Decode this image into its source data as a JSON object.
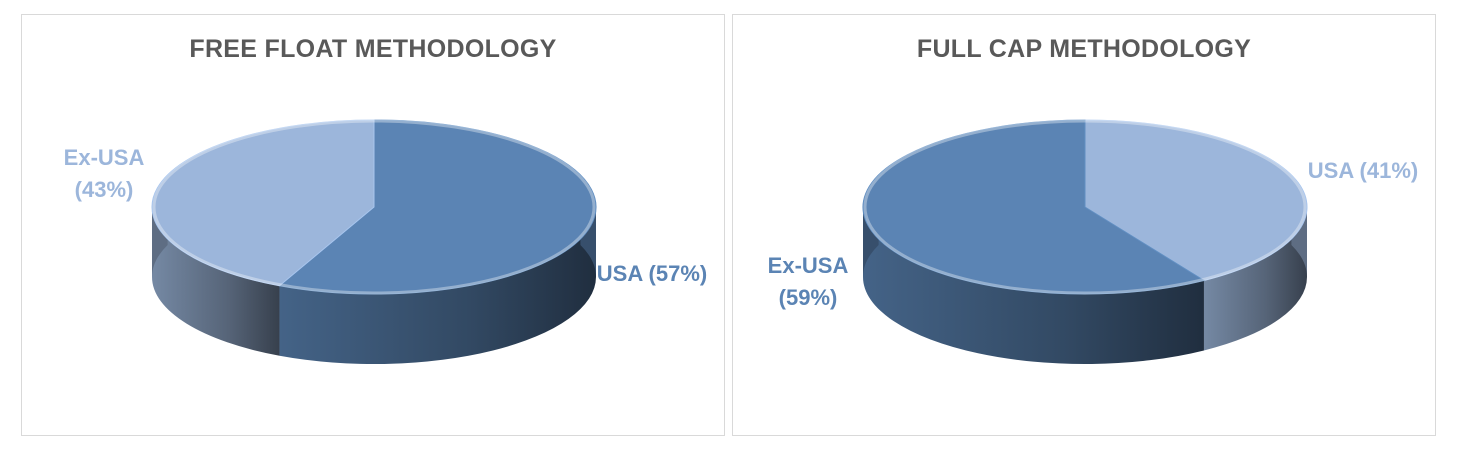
{
  "chart_data": [
    {
      "type": "pie",
      "title": "FREE FLOAT METHODOLOGY",
      "slices": [
        {
          "label": "USA (57%)",
          "name": "USA",
          "value": 57,
          "color": "#5b84b4"
        },
        {
          "label": "Ex-USA (43%)",
          "label_lines": [
            "Ex-USA",
            "(43%)"
          ],
          "name": "Ex-USA",
          "value": 43,
          "color": "#9cb6db"
        }
      ]
    },
    {
      "type": "pie",
      "title": "FULL CAP METHODOLOGY",
      "slices": [
        {
          "label": "USA (41%)",
          "name": "USA",
          "value": 41,
          "color": "#9cb6db"
        },
        {
          "label": "Ex-USA (59%)",
          "label_lines": [
            "Ex-USA",
            "(59%)"
          ],
          "name": "Ex-USA",
          "value": 59,
          "color": "#5b84b4"
        }
      ]
    }
  ]
}
